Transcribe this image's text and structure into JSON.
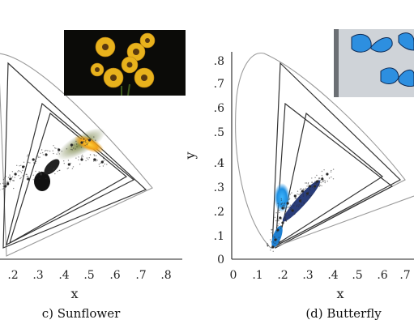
{
  "chart_data": [
    {
      "type": "scatter",
      "title": "",
      "caption": "c) Sunflower",
      "xlabel": "x",
      "ylabel": "",
      "x_ticks": [
        ".2",
        ".3",
        ".4",
        ".5",
        ".6",
        ".7",
        ".8"
      ],
      "y_ticks": [],
      "xlim": [
        0.1,
        0.8
      ],
      "ylim": [
        0,
        0.85
      ],
      "inset": "sunflower-photo",
      "colors": {
        "dense_core": "#111111",
        "highlight": "#f3b020",
        "mid": "#6b7a3c",
        "scatter": "#2a2a2a"
      },
      "series": [
        {
          "values": [
            [
              0.17,
              0.3
            ],
            [
              0.18,
              0.31
            ],
            [
              0.19,
              0.33
            ],
            [
              0.21,
              0.35
            ],
            [
              0.24,
              0.38
            ],
            [
              0.28,
              0.41
            ],
            [
              0.33,
              0.43
            ],
            [
              0.38,
              0.45
            ],
            [
              0.43,
              0.47
            ],
            [
              0.47,
              0.48
            ],
            [
              0.5,
              0.49
            ],
            [
              0.26,
              0.33
            ],
            [
              0.31,
              0.35
            ],
            [
              0.36,
              0.37
            ],
            [
              0.42,
              0.39
            ],
            [
              0.47,
              0.41
            ],
            [
              0.52,
              0.41
            ],
            [
              0.55,
              0.4
            ]
          ]
        }
      ]
    },
    {
      "type": "scatter",
      "title": "",
      "caption": "(d) Butterfly",
      "xlabel": "x",
      "ylabel": "y",
      "x_ticks": [
        "0",
        ".1",
        ".2",
        ".3",
        ".4",
        ".5",
        ".6",
        ".7"
      ],
      "y_ticks": [
        "0",
        ".1",
        ".2",
        ".3",
        ".4",
        ".5",
        ".6",
        ".7",
        ".8"
      ],
      "xlim": [
        0,
        0.75
      ],
      "ylim": [
        0,
        0.85
      ],
      "inset": "butterfly-photo",
      "colors": {
        "dense_core": "#1b2b6a",
        "highlight": "#2aa0e8",
        "mid": "#3a5a9a",
        "scatter": "#2a2a2a"
      },
      "series": [
        {
          "values": [
            [
              0.16,
              0.05
            ],
            [
              0.17,
              0.08
            ],
            [
              0.18,
              0.12
            ],
            [
              0.19,
              0.17
            ],
            [
              0.2,
              0.21
            ],
            [
              0.22,
              0.23
            ],
            [
              0.25,
              0.26
            ],
            [
              0.28,
              0.28
            ],
            [
              0.31,
              0.3
            ],
            [
              0.34,
              0.32
            ],
            [
              0.36,
              0.33
            ],
            [
              0.38,
              0.35
            ],
            [
              0.2,
              0.15
            ],
            [
              0.24,
              0.2
            ],
            [
              0.27,
              0.24
            ],
            [
              0.3,
              0.27
            ],
            [
              0.33,
              0.3
            ]
          ]
        }
      ]
    }
  ]
}
